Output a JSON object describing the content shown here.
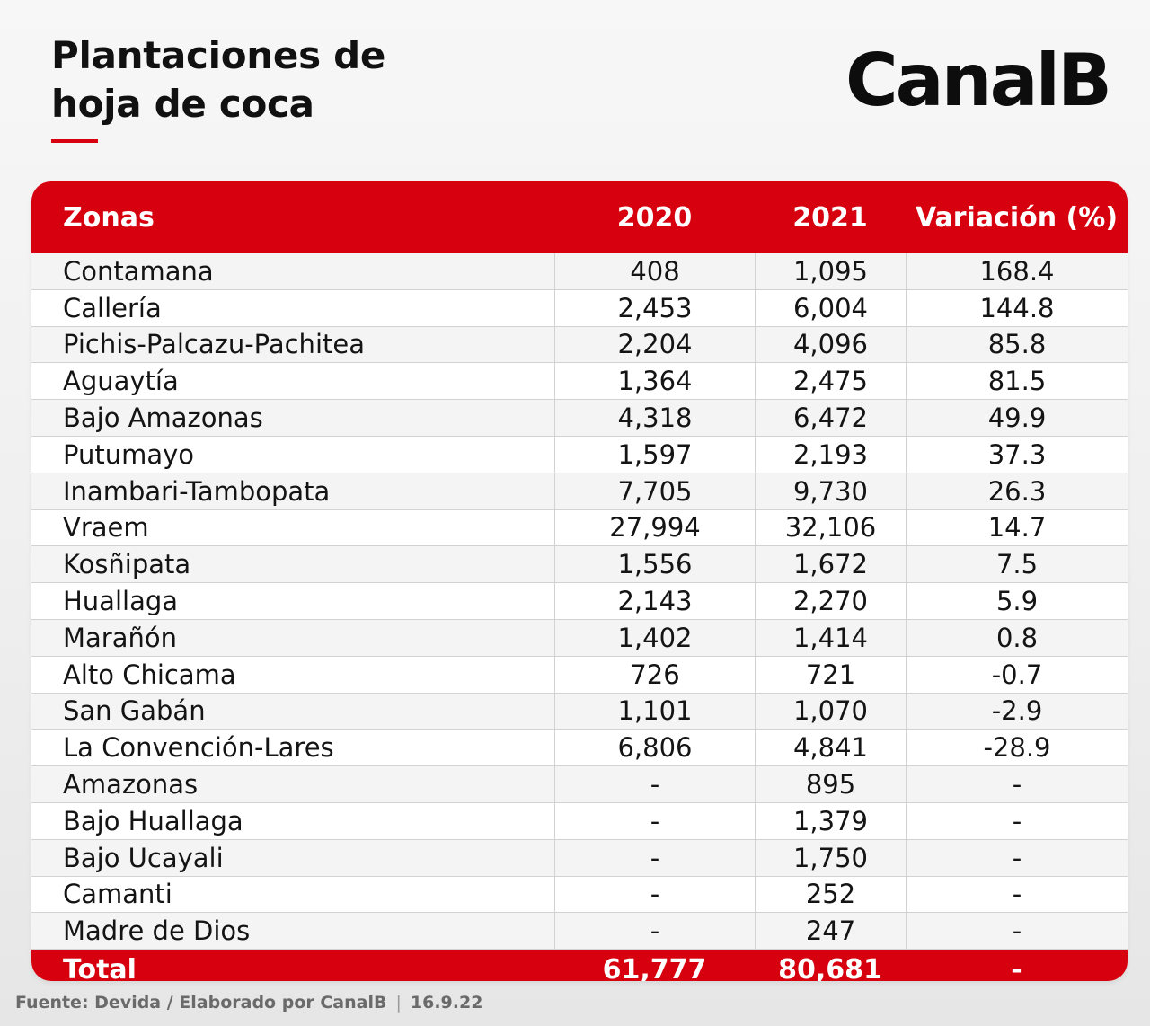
{
  "header": {
    "title_line1": "Plantaciones de",
    "title_line2": "hoja de coca",
    "logo": "CanalB",
    "accent_color": "#d7000f"
  },
  "table": {
    "columns": [
      "Zonas",
      "2020",
      "2021",
      "Variación (%)"
    ],
    "rows": [
      [
        "Contamana",
        "408",
        "1,095",
        "168.4"
      ],
      [
        "Callería",
        "2,453",
        "6,004",
        "144.8"
      ],
      [
        "Pichis-Palcazu-Pachitea",
        "2,204",
        "4,096",
        "85.8"
      ],
      [
        "Aguaytía",
        "1,364",
        "2,475",
        "81.5"
      ],
      [
        "Bajo Amazonas",
        "4,318",
        "6,472",
        "49.9"
      ],
      [
        "Putumayo",
        "1,597",
        "2,193",
        "37.3"
      ],
      [
        "Inambari-Tambopata",
        "7,705",
        "9,730",
        "26.3"
      ],
      [
        "Vraem",
        "27,994",
        "32,106",
        "14.7"
      ],
      [
        "Kosñipata",
        "1,556",
        "1,672",
        "7.5"
      ],
      [
        "Huallaga",
        "2,143",
        "2,270",
        "5.9"
      ],
      [
        "Marañón",
        "1,402",
        "1,414",
        "0.8"
      ],
      [
        "Alto Chicama",
        "726",
        "721",
        "-0.7"
      ],
      [
        "San Gabán",
        "1,101",
        "1,070",
        "-2.9"
      ],
      [
        "La Convención-Lares",
        "6,806",
        "4,841",
        "-28.9"
      ],
      [
        "Amazonas",
        "-",
        "895",
        "-"
      ],
      [
        "Bajo Huallaga",
        "-",
        "1,379",
        "-"
      ],
      [
        "Bajo Ucayali",
        "-",
        "1,750",
        "-"
      ],
      [
        "Camanti",
        "-",
        "252",
        "-"
      ],
      [
        "Madre de Dios",
        "-",
        "247",
        "-"
      ]
    ],
    "total": [
      "Total",
      "61,777",
      "80,681",
      "-"
    ]
  },
  "footer": {
    "source": "Fuente: Devida / Elaborado por CanalB",
    "separator": "|",
    "date": "16.9.22"
  }
}
